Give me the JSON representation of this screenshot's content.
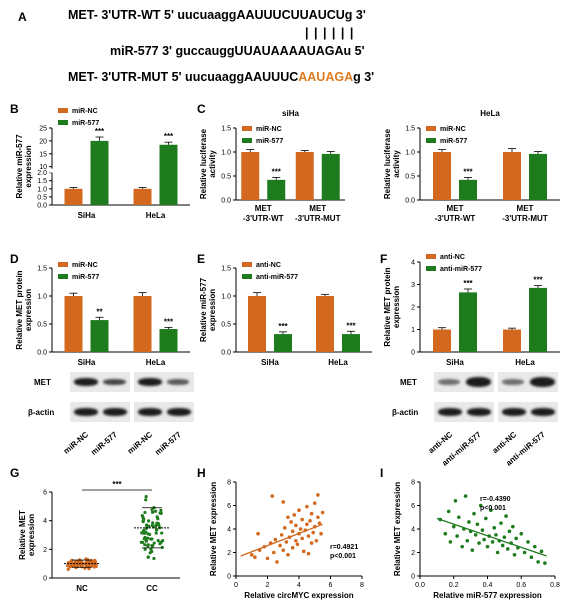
{
  "colors": {
    "orange": "#d2691e",
    "green": "#1e7b1e",
    "seq_highlight": "#e07b1f",
    "box_fill": "#e5e5e5"
  },
  "panels": {
    "A": {
      "letter": "A",
      "line1_prefix": "MET- 3'UTR-WT 5' uucuaaggAAUUUCUUAUCUg 3'",
      "bars": "| | | | | |",
      "line2": "miR-577 3' guccauggUUAUAAAAUAGAu 5'",
      "line3_prefix": "MET- 3'UTR-MUT 5' uucuaaggAAUUUC",
      "line3_mut": "AAUAGA",
      "line3_suffix": "g 3'"
    },
    "B": {
      "letter": "B"
    },
    "C": {
      "letter": "C"
    },
    "D": {
      "letter": "D"
    },
    "E": {
      "letter": "E"
    },
    "F": {
      "letter": "F"
    },
    "G": {
      "letter": "G"
    },
    "H": {
      "letter": "H"
    },
    "I": {
      "letter": "I"
    }
  },
  "blots": {
    "D": {
      "met": "MET",
      "actin": "β-actin",
      "lanes": [
        "miR-NC",
        "miR-577",
        "miR-NC",
        "miR-577"
      ]
    },
    "F": {
      "met": "MET",
      "actin": "β-actin",
      "lanes": [
        "anti-NC",
        "anti-miR-577",
        "anti-NC",
        "anti-miR-577"
      ]
    }
  },
  "chart_data": [
    {
      "panel": "B",
      "type": "bar",
      "title": "",
      "ylabel": "Relative miR-577 expression",
      "categories": [
        "SiHa",
        "HeLa"
      ],
      "ylim": [
        0,
        25
      ],
      "axis_break": [
        2,
        10
      ],
      "yticks": [
        "0.0",
        "0.5",
        "1.0",
        "1.5",
        "2.0",
        "10",
        "15",
        "20",
        "25"
      ],
      "series": [
        {
          "name": "miR-NC",
          "color": "orange",
          "values": [
            1.0,
            1.0
          ],
          "errors": [
            0.08,
            0.08
          ]
        },
        {
          "name": "miR-577",
          "color": "green",
          "values": [
            20.0,
            18.5
          ],
          "errors": [
            1.5,
            1.0
          ]
        }
      ],
      "annotations": [
        "***",
        "***"
      ]
    },
    {
      "panel": "C1",
      "type": "bar",
      "title": "siHa",
      "ylabel": "Relative luciferase activity",
      "categories": [
        "MET -3'UTR-WT",
        "MET -3'UTR-MUT"
      ],
      "ylim": [
        0,
        1.5
      ],
      "yticks": [
        "0.0",
        "0.5",
        "1.0",
        "1.5"
      ],
      "series": [
        {
          "name": "miR-NC",
          "color": "orange",
          "values": [
            1.0,
            1.0
          ],
          "errors": [
            0.05,
            0.03
          ]
        },
        {
          "name": "miR-577",
          "color": "green",
          "values": [
            0.42,
            0.96
          ],
          "errors": [
            0.05,
            0.05
          ]
        }
      ],
      "annotations": [
        "***",
        ""
      ]
    },
    {
      "panel": "C2",
      "type": "bar",
      "title": "HeLa",
      "ylabel": "Relative luciferase activity",
      "categories": [
        "MET -3'UTR-WT",
        "MET -3'UTR-MUT"
      ],
      "ylim": [
        0,
        1.5
      ],
      "yticks": [
        "0.0",
        "0.5",
        "1.0",
        "1.5"
      ],
      "series": [
        {
          "name": "miR-NC",
          "color": "orange",
          "values": [
            1.0,
            1.0
          ],
          "errors": [
            0.05,
            0.07
          ]
        },
        {
          "name": "miR-577",
          "color": "green",
          "values": [
            0.42,
            0.96
          ],
          "errors": [
            0.05,
            0.05
          ]
        }
      ],
      "annotations": [
        "***",
        ""
      ]
    },
    {
      "panel": "D",
      "type": "bar",
      "title": "",
      "ylabel": "Relative MET protein expression",
      "categories": [
        "SiHa",
        "HeLa"
      ],
      "ylim": [
        0,
        1.5
      ],
      "yticks": [
        "0.0",
        "0.5",
        "1.0",
        "1.5"
      ],
      "series": [
        {
          "name": "miR-NC",
          "color": "orange",
          "values": [
            1.0,
            1.0
          ],
          "errors": [
            0.05,
            0.06
          ]
        },
        {
          "name": "miR-577",
          "color": "green",
          "values": [
            0.57,
            0.41
          ],
          "errors": [
            0.05,
            0.03
          ]
        }
      ],
      "annotations": [
        "**",
        "***"
      ]
    },
    {
      "panel": "E",
      "type": "bar",
      "title": "",
      "ylabel": "Relative miR-577 expression",
      "categories": [
        "SiHa",
        "HeLa"
      ],
      "ylim": [
        0,
        1.5
      ],
      "yticks": [
        "0.0",
        "0.5",
        "1.0",
        "1.5"
      ],
      "series": [
        {
          "name": "anti-NC",
          "color": "orange",
          "values": [
            1.0,
            1.0
          ],
          "errors": [
            0.06,
            0.03
          ]
        },
        {
          "name": "anti-miR-577",
          "color": "green",
          "values": [
            0.32,
            0.32
          ],
          "errors": [
            0.04,
            0.05
          ]
        }
      ],
      "annotations": [
        "***",
        "***"
      ]
    },
    {
      "panel": "F",
      "type": "bar",
      "title": "",
      "ylabel": "Relative MET protein expression",
      "categories": [
        "SiHa",
        "HeLa"
      ],
      "ylim": [
        0,
        4
      ],
      "yticks": [
        "0",
        "1",
        "2",
        "3",
        "4"
      ],
      "series": [
        {
          "name": "anti-NC",
          "color": "orange",
          "values": [
            1.0,
            1.0
          ],
          "errors": [
            0.08,
            0.06
          ]
        },
        {
          "name": "anti-miR-577",
          "color": "green",
          "values": [
            2.65,
            2.85
          ],
          "errors": [
            0.15,
            0.1
          ]
        }
      ],
      "annotations": [
        "***",
        "***"
      ]
    },
    {
      "panel": "G",
      "type": "scatter",
      "title": "",
      "ylabel": "Relative MET expression",
      "categories": [
        "NC",
        "CC"
      ],
      "ylim": [
        0,
        6
      ],
      "yticks": [
        "0",
        "2",
        "4",
        "6"
      ],
      "groups": [
        {
          "name": "NC",
          "mean": 1.0,
          "sd": 0.25
        },
        {
          "name": "CC",
          "mean": 3.5,
          "sd": 1.4
        }
      ],
      "annotation": "***"
    },
    {
      "panel": "H",
      "type": "scatter",
      "title": "",
      "xlabel": "Relative circMYC expression",
      "ylabel": "Relative MET expression",
      "xlim": [
        0,
        8
      ],
      "ylim": [
        0,
        8
      ],
      "xticks": [
        "0",
        "2",
        "4",
        "6",
        "8"
      ],
      "yticks": [
        "0",
        "2",
        "4",
        "6",
        "8"
      ],
      "stats": [
        "r=0.4921",
        "p<0.001"
      ],
      "trend": {
        "x": [
          0.3,
          5.5
        ],
        "y": [
          1.7,
          4.4
        ]
      },
      "points": [
        [
          1.0,
          1.8
        ],
        [
          1.2,
          1.6
        ],
        [
          1.5,
          2.2
        ],
        [
          1.8,
          2.5
        ],
        [
          2.0,
          1.5
        ],
        [
          2.2,
          2.8
        ],
        [
          2.4,
          2.0
        ],
        [
          2.5,
          3.1
        ],
        [
          2.6,
          1.2
        ],
        [
          2.8,
          2.6
        ],
        [
          2.9,
          3.5
        ],
        [
          3.0,
          2.2
        ],
        [
          3.1,
          4.1
        ],
        [
          3.2,
          2.9
        ],
        [
          3.3,
          1.8
        ],
        [
          3.4,
          3.3
        ],
        [
          3.5,
          4.6
        ],
        [
          3.6,
          2.4
        ],
        [
          3.6,
          3.8
        ],
        [
          3.7,
          5.2
        ],
        [
          3.8,
          3.0
        ],
        [
          3.8,
          4.3
        ],
        [
          3.9,
          2.7
        ],
        [
          4.0,
          3.6
        ],
        [
          4.0,
          5.6
        ],
        [
          4.1,
          4.0
        ],
        [
          4.2,
          3.2
        ],
        [
          4.2,
          4.8
        ],
        [
          4.3,
          2.1
        ],
        [
          4.4,
          3.9
        ],
        [
          4.5,
          4.4
        ],
        [
          4.5,
          5.9
        ],
        [
          4.6,
          3.4
        ],
        [
          4.7,
          4.7
        ],
        [
          4.8,
          2.8
        ],
        [
          4.8,
          5.3
        ],
        [
          4.9,
          3.7
        ],
        [
          5.0,
          4.2
        ],
        [
          5.0,
          6.2
        ],
        [
          5.1,
          3.0
        ],
        [
          5.2,
          5.0
        ],
        [
          5.3,
          4.5
        ],
        [
          5.4,
          3.6
        ],
        [
          5.5,
          5.4
        ],
        [
          2.3,
          6.8
        ],
        [
          3.0,
          6.3
        ],
        [
          1.4,
          3.6
        ],
        [
          4.6,
          1.9
        ],
        [
          3.3,
          5.0
        ],
        [
          5.2,
          6.9
        ]
      ]
    },
    {
      "panel": "I",
      "type": "scatter",
      "title": "",
      "xlabel": "Relative miR-577 expression",
      "ylabel": "Relative MET expression",
      "xlim": [
        0,
        0.8
      ],
      "ylim": [
        0,
        8
      ],
      "xticks": [
        "0.0",
        "0.2",
        "0.4",
        "0.6",
        "0.8"
      ],
      "yticks": [
        "0",
        "2",
        "4",
        "6",
        "8"
      ],
      "stats": [
        "r=-0.4390",
        "p<0.001"
      ],
      "trend": {
        "x": [
          0.1,
          0.75
        ],
        "y": [
          4.9,
          1.7
        ]
      },
      "points": [
        [
          0.12,
          4.8
        ],
        [
          0.15,
          3.6
        ],
        [
          0.17,
          5.5
        ],
        [
          0.18,
          2.9
        ],
        [
          0.2,
          4.2
        ],
        [
          0.21,
          6.4
        ],
        [
          0.22,
          3.4
        ],
        [
          0.23,
          5.0
        ],
        [
          0.25,
          2.5
        ],
        [
          0.26,
          4.0
        ],
        [
          0.27,
          6.8
        ],
        [
          0.28,
          3.0
        ],
        [
          0.29,
          4.6
        ],
        [
          0.3,
          3.8
        ],
        [
          0.31,
          2.2
        ],
        [
          0.32,
          5.3
        ],
        [
          0.33,
          3.5
        ],
        [
          0.34,
          4.4
        ],
        [
          0.35,
          2.8
        ],
        [
          0.36,
          6.0
        ],
        [
          0.37,
          3.9
        ],
        [
          0.38,
          3.1
        ],
        [
          0.39,
          4.9
        ],
        [
          0.4,
          2.5
        ],
        [
          0.41,
          3.4
        ],
        [
          0.42,
          5.6
        ],
        [
          0.43,
          2.9
        ],
        [
          0.44,
          4.1
        ],
        [
          0.45,
          3.5
        ],
        [
          0.46,
          2.0
        ],
        [
          0.47,
          3.0
        ],
        [
          0.48,
          4.5
        ],
        [
          0.49,
          2.6
        ],
        [
          0.5,
          3.3
        ],
        [
          0.51,
          5.1
        ],
        [
          0.52,
          2.3
        ],
        [
          0.53,
          3.8
        ],
        [
          0.54,
          2.8
        ],
        [
          0.55,
          4.2
        ],
        [
          0.56,
          1.8
        ],
        [
          0.57,
          3.2
        ],
        [
          0.58,
          2.4
        ],
        [
          0.6,
          3.6
        ],
        [
          0.62,
          2.0
        ],
        [
          0.64,
          2.9
        ],
        [
          0.66,
          1.6
        ],
        [
          0.68,
          2.5
        ],
        [
          0.7,
          1.2
        ],
        [
          0.72,
          2.1
        ],
        [
          0.74,
          1.1
        ]
      ]
    }
  ]
}
